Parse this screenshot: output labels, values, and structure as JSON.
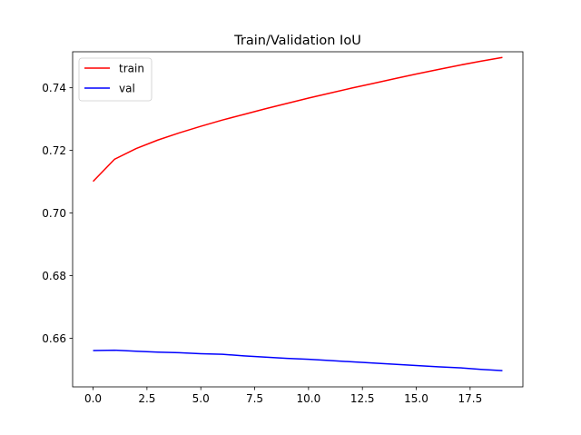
{
  "chart_data": {
    "type": "line",
    "title": "Train/Validation IoU",
    "xlabel": "",
    "ylabel": "",
    "xlim": [
      -0.95,
      19.95
    ],
    "ylim": [
      0.6445,
      0.7515
    ],
    "xticks": [
      0,
      2.5,
      5,
      7.5,
      10,
      12.5,
      15,
      17.5
    ],
    "xtick_labels": [
      "0.0",
      "2.5",
      "5.0",
      "7.5",
      "10.0",
      "12.5",
      "15.0",
      "17.5"
    ],
    "yticks": [
      0.66,
      0.68,
      0.7,
      0.72,
      0.74
    ],
    "ytick_labels": [
      "0.66",
      "0.68",
      "0.70",
      "0.72",
      "0.74"
    ],
    "grid": false,
    "legend_position": "top-left",
    "x": [
      0,
      1,
      2,
      3,
      4,
      5,
      6,
      7,
      8,
      9,
      10,
      11,
      12,
      13,
      14,
      15,
      16,
      17,
      18,
      19
    ],
    "series": [
      {
        "name": "train",
        "color": "#ff0000",
        "values": [
          0.7101,
          0.7172,
          0.7206,
          0.7233,
          0.7256,
          0.7277,
          0.7297,
          0.7315,
          0.7333,
          0.735,
          0.7367,
          0.7383,
          0.7399,
          0.7414,
          0.7429,
          0.7444,
          0.7458,
          0.7472,
          0.7485,
          0.7497
        ]
      },
      {
        "name": "val",
        "color": "#0000ff",
        "values": [
          0.6561,
          0.6562,
          0.6559,
          0.6556,
          0.6554,
          0.6551,
          0.6549,
          0.6544,
          0.654,
          0.6536,
          0.6533,
          0.6529,
          0.6525,
          0.6521,
          0.6517,
          0.6513,
          0.6509,
          0.6506,
          0.6501,
          0.6497
        ]
      }
    ]
  }
}
